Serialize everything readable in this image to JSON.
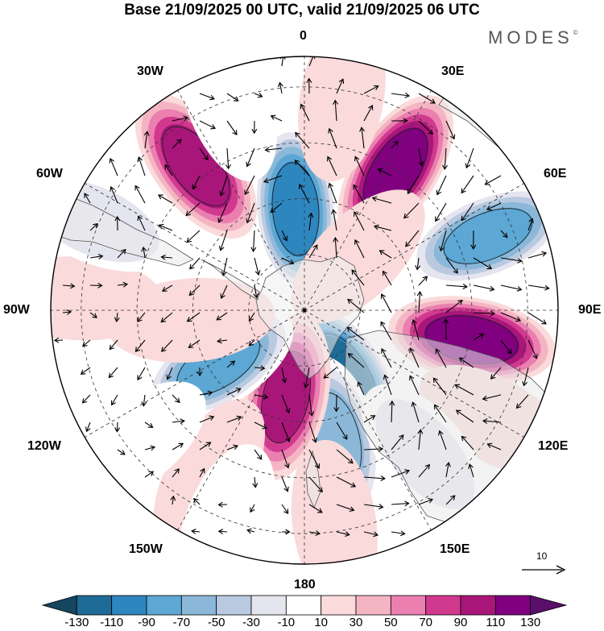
{
  "title": "Base 21/09/2025 00 UTC, valid 21/09/2025 06 UTC",
  "brand": {
    "name": "MODES",
    "mark": "©"
  },
  "lon_labels": {
    "l0": "0",
    "l30e": "30E",
    "l60e": "60E",
    "l90e": "90E",
    "l120e": "120E",
    "l150e": "150E",
    "l180": "180",
    "l150w": "150W",
    "l120w": "120W",
    "l90w": "90W",
    "l60w": "60W",
    "l30w": "30W"
  },
  "reference_vector": {
    "label": "10",
    "magnitude": 10
  },
  "colorbar": {
    "colors": [
      "#15465f",
      "#1f6b98",
      "#2e86bf",
      "#5ca7d4",
      "#8bb8d9",
      "#b9c9e0",
      "#e4e5ef",
      "#ffffff",
      "#fadada",
      "#f4b5c3",
      "#ea7fb0",
      "#d1398f",
      "#a9167a",
      "#800080",
      "#5a0f6b"
    ],
    "tick_labels": [
      "-130",
      "-110",
      "-90",
      "-70",
      "-50",
      "-30",
      "-10",
      "10",
      "30",
      "50",
      "70",
      "90",
      "110",
      "130"
    ]
  },
  "anomaly_centers": [
    {
      "lon": -5,
      "colat_frac": 0.4,
      "value": -130
    },
    {
      "lon": 33,
      "colat_frac": 0.66,
      "value": 130
    },
    {
      "lon": 68,
      "colat_frac": 0.78,
      "value": -100
    },
    {
      "lon": 100,
      "colat_frac": 0.67,
      "value": 130
    },
    {
      "lon": 148,
      "colat_frac": 0.3,
      "value": -140
    },
    {
      "lon": 166,
      "colat_frac": 0.52,
      "value": -80
    },
    {
      "lon": -168,
      "colat_frac": 0.35,
      "value": 95
    },
    {
      "lon": -122,
      "colat_frac": 0.4,
      "value": -100
    },
    {
      "lon": -150,
      "colat_frac": 0.75,
      "value": 30
    },
    {
      "lon": -95,
      "colat_frac": 0.45,
      "value": 30
    },
    {
      "lon": -87,
      "colat_frac": 0.89,
      "value": 25
    },
    {
      "lon": -67,
      "colat_frac": 0.9,
      "value": -50
    },
    {
      "lon": -37,
      "colat_frac": 0.71,
      "value": 105
    },
    {
      "lon": -20,
      "colat_frac": 0.88,
      "value": -30
    },
    {
      "lon": 10,
      "colat_frac": 0.85,
      "value": 30
    },
    {
      "lon": 120,
      "colat_frac": 0.87,
      "value": 20
    },
    {
      "lon": 140,
      "colat_frac": 0.74,
      "value": -40
    },
    {
      "lon": 172,
      "colat_frac": 0.85,
      "value": 20
    },
    {
      "lon": -128,
      "colat_frac": 0.85,
      "value": -25
    },
    {
      "lon": -160,
      "colat_frac": 0.9,
      "value": -20
    },
    {
      "lon": 45,
      "colat_frac": 0.3,
      "value": 25
    }
  ]
}
